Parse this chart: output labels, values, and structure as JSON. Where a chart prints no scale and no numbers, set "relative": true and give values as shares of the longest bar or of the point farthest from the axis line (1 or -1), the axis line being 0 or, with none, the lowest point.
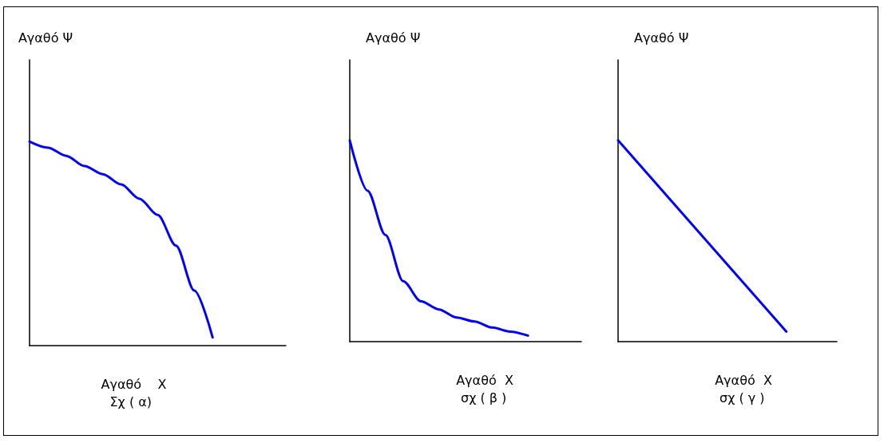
{
  "chart_data": [
    {
      "type": "line",
      "relative": true,
      "marker": "none",
      "xlabel": "Αγαθό    Χ",
      "ylabel": "Αγαθό Ψ",
      "annotations": [
        "Σχ ( α)"
      ],
      "categories": [
        null,
        null,
        null,
        null,
        null,
        null,
        null,
        null,
        null,
        null,
        null,
        null,
        null,
        null,
        null
      ],
      "series": [
        {
          "color": "#0000ff",
          "values": [
            1,
            0.97,
            0.93,
            0.88,
            0.84,
            0.79,
            0.72,
            0.64,
            0.49,
            0.27,
            0.04,
            null,
            null,
            null,
            null
          ]
        }
      ]
    },
    {
      "type": "line",
      "relative": true,
      "marker": "none",
      "xlabel": "Αγαθό  Χ",
      "ylabel": "Αγαθό Ψ",
      "annotations": [
        "σχ ( β )"
      ],
      "categories": [
        null,
        null,
        null,
        null,
        null,
        null,
        null,
        null,
        null,
        null,
        null,
        null,
        null,
        null
      ],
      "series": [
        {
          "color": "#0000ff",
          "values": [
            1,
            0.75,
            0.53,
            0.3,
            0.2,
            0.16,
            0.12,
            0.1,
            0.07,
            0.05,
            0.03,
            null,
            null,
            null
          ]
        }
      ]
    },
    {
      "type": "line",
      "relative": true,
      "marker": "none",
      "xlabel": "Αγαθό  Χ",
      "ylabel": "Αγαθό Ψ",
      "annotations": [
        "σχ ( γ )"
      ],
      "categories": [
        null,
        null,
        null,
        null,
        null,
        null,
        null,
        null,
        null,
        null,
        null,
        null,
        null,
        null
      ],
      "series": [
        {
          "color": "#0000ff",
          "values": [
            1,
            null,
            null,
            null,
            null,
            null,
            null,
            null,
            null,
            null,
            0.05,
            null,
            null,
            null
          ]
        }
      ]
    }
  ]
}
